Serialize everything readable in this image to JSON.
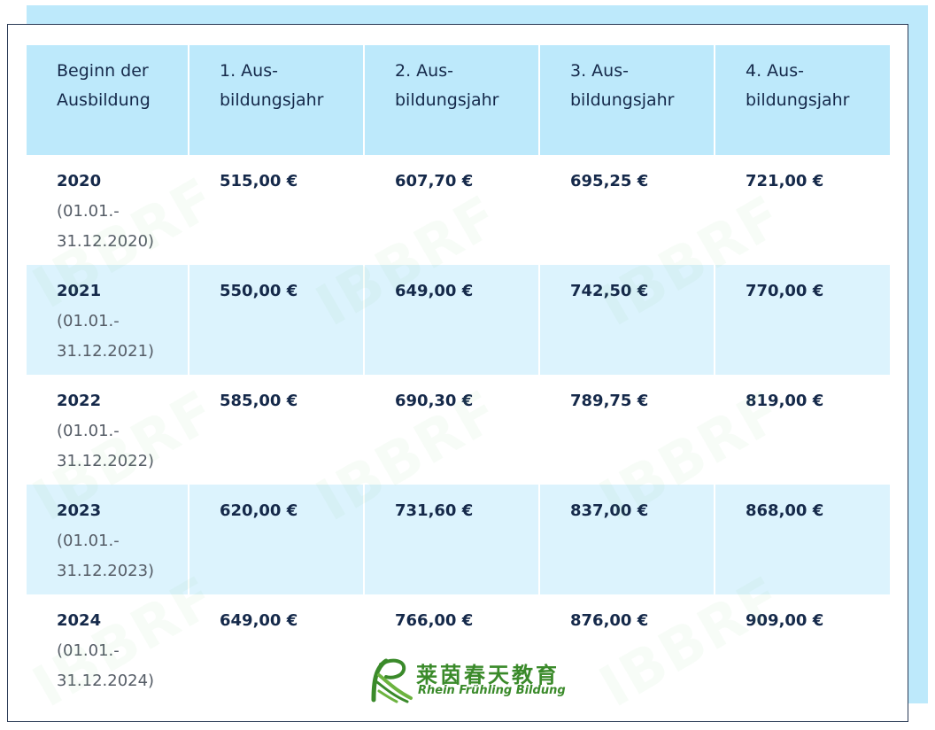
{
  "table": {
    "headers": [
      [
        "Beginn der",
        "Ausbildung"
      ],
      [
        "1. Aus-",
        "bildungsjahr"
      ],
      [
        "2. Aus-",
        "bildungsjahr"
      ],
      [
        "3. Aus-",
        "bildungsjahr"
      ],
      [
        "4. Aus-",
        "bildungsjahr"
      ]
    ],
    "rows": [
      {
        "year": "2020",
        "range_start": "(01.01.-",
        "range_end": "31.12.2020)",
        "amounts": [
          "515,00 €",
          "607,70 €",
          "695,25 €",
          "721,00 €"
        ]
      },
      {
        "year": "2021",
        "range_start": "(01.01.-",
        "range_end": "31.12.2021)",
        "amounts": [
          "550,00 €",
          "649,00 €",
          "742,50 €",
          "770,00 €"
        ]
      },
      {
        "year": "2022",
        "range_start": "(01.01.-",
        "range_end": "31.12.2022)",
        "amounts": [
          "585,00 €",
          "690,30 €",
          "789,75 €",
          "819,00 €"
        ]
      },
      {
        "year": "2023",
        "range_start": "(01.01.-",
        "range_end": "31.12.2023)",
        "amounts": [
          "620,00 €",
          "731,60 €",
          "837,00 €",
          "868,00 €"
        ]
      },
      {
        "year": "2024",
        "range_start": "(01.01.-",
        "range_end": "31.12.2024)",
        "amounts": [
          "649,00 €",
          "766,00 €",
          "876,00 €",
          "909,00 €"
        ]
      }
    ]
  },
  "watermark": {
    "text": "IBBRF"
  },
  "logo": {
    "chinese": "莱茵春天教育",
    "english": "Rhein Frühling Bildung",
    "color": "#3a8a2a"
  },
  "colors": {
    "header_bg": "#bde9fb",
    "stripe_bg": "#dcf3fd",
    "text": "#15294a"
  }
}
